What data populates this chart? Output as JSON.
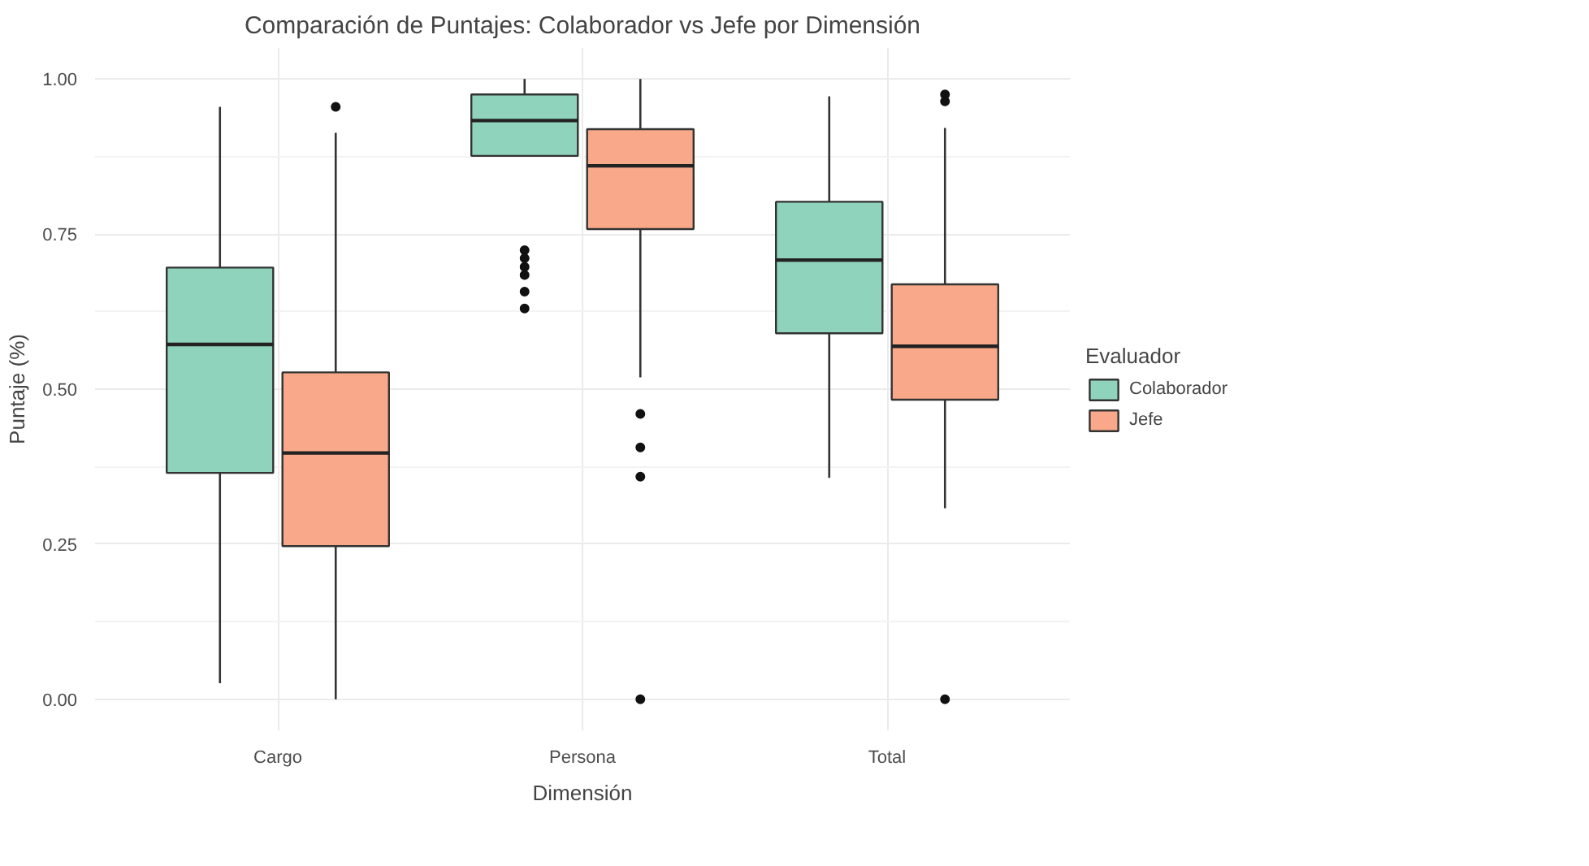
{
  "chart_data": {
    "type": "box",
    "title": "Comparación de Puntajes: Colaborador vs Jefe por Dimensión",
    "xlabel": "Dimensión",
    "ylabel": "Puntaje (%)",
    "legend_title": "Evaluador",
    "categories": [
      "Cargo",
      "Persona",
      "Total"
    ],
    "series": [
      {
        "name": "Colaborador",
        "color": "#8fd3bd",
        "boxes": [
          {
            "low": 0.026,
            "q1": 0.365,
            "median": 0.572,
            "q3": 0.696,
            "high": 0.955
          },
          {
            "low": 0.876,
            "q1": 0.876,
            "median": 0.933,
            "q3": 0.975,
            "high": 1.0,
            "outliers": [
              0.724,
              0.711,
              0.697,
              0.684,
              0.657,
              0.63
            ]
          },
          {
            "low": 0.357,
            "q1": 0.59,
            "median": 0.708,
            "q3": 0.802,
            "high": 0.972
          }
        ]
      },
      {
        "name": "Jefe",
        "color": "#f9a98a",
        "boxes": [
          {
            "low": 0.0,
            "q1": 0.247,
            "median": 0.397,
            "q3": 0.527,
            "high": 0.913,
            "outliers": [
              0.955
            ]
          },
          {
            "low": 0.519,
            "q1": 0.758,
            "median": 0.86,
            "q3": 0.919,
            "high": 1.0,
            "outliers": [
              0.46,
              0.406,
              0.359,
              0.0
            ]
          },
          {
            "low": 0.308,
            "q1": 0.483,
            "median": 0.569,
            "q3": 0.669,
            "high": 0.921,
            "outliers": [
              0.975,
              0.964,
              0.0
            ]
          }
        ]
      }
    ],
    "ylim": [
      -0.05,
      1.05
    ],
    "yticks": [
      {
        "value": 0,
        "label": "0.00"
      },
      {
        "value": 0.25,
        "label": "0.25"
      },
      {
        "value": 0.5,
        "label": "0.50"
      },
      {
        "value": 0.75,
        "label": "0.75"
      },
      {
        "value": 1,
        "label": "1.00"
      }
    ],
    "grid": true,
    "legend": "right"
  }
}
